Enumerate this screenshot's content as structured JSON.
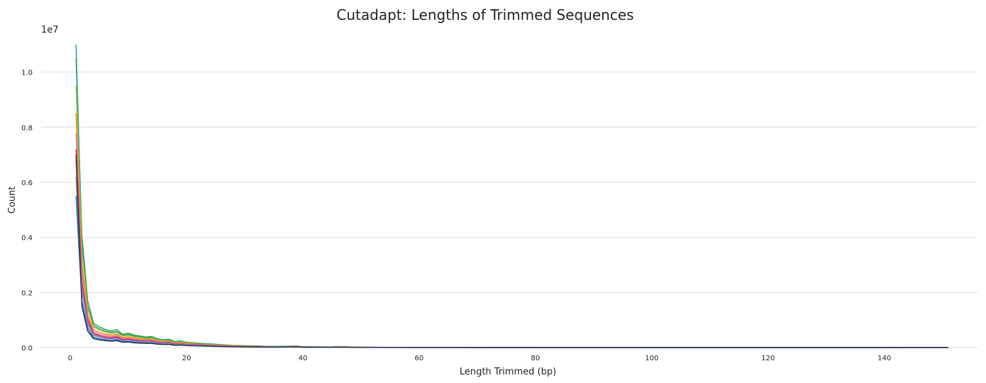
{
  "chart_data": {
    "type": "line",
    "title": "Cutadapt: Lengths of Trimmed Sequences",
    "xlabel": "Length Trimmed (bp)",
    "ylabel": "Count",
    "offset_label": "1e7",
    "xlim": [
      -5,
      156
    ],
    "ylim": [
      0,
      1.12
    ],
    "xticks": [
      0,
      20,
      40,
      60,
      80,
      100,
      120,
      140
    ],
    "yticks": [
      0.0,
      0.2,
      0.4,
      0.6,
      0.8,
      1.0
    ],
    "ytick_labels": [
      "0.0",
      "0.2",
      "0.4",
      "0.6",
      "0.8",
      "1.0"
    ],
    "grid": "horizontal",
    "legend": "none",
    "x": [
      1,
      2,
      3,
      4,
      5,
      6,
      7,
      8,
      9,
      10,
      11,
      12,
      13,
      14,
      15,
      16,
      17,
      18,
      19,
      20,
      22,
      25,
      28,
      30,
      35,
      39,
      40,
      45,
      46,
      50,
      60,
      80,
      100,
      120,
      140,
      151
    ],
    "series": [
      {
        "color": "#2ca02c",
        "values": [
          1.05,
          0.41,
          0.17,
          0.088,
          0.075,
          0.066,
          0.06,
          0.065,
          0.048,
          0.052,
          0.045,
          0.042,
          0.038,
          0.04,
          0.032,
          0.028,
          0.03,
          0.022,
          0.024,
          0.019,
          0.016,
          0.012,
          0.008,
          0.007,
          0.004,
          0.006,
          0.003,
          0.002,
          0.004,
          0.001,
          0.0005,
          0.0003,
          0.0002,
          0.0001,
          0.0001,
          0.0003
        ]
      },
      {
        "color": "#17a29a",
        "values": [
          1.1,
          0.38,
          0.15,
          0.08,
          0.068,
          0.06,
          0.055,
          0.058,
          0.044,
          0.048,
          0.041,
          0.039,
          0.035,
          0.037,
          0.029,
          0.026,
          0.027,
          0.02,
          0.022,
          0.017,
          0.015,
          0.011,
          0.007,
          0.006,
          0.004,
          0.005,
          0.003,
          0.002,
          0.003,
          0.001,
          0.0005,
          0.0003,
          0.0002,
          0.0001,
          0.0001,
          0.0003
        ]
      },
      {
        "color": "#bcbd22",
        "values": [
          0.95,
          0.35,
          0.14,
          0.075,
          0.063,
          0.056,
          0.051,
          0.054,
          0.041,
          0.044,
          0.038,
          0.036,
          0.032,
          0.034,
          0.027,
          0.024,
          0.025,
          0.018,
          0.02,
          0.016,
          0.013,
          0.01,
          0.007,
          0.006,
          0.003,
          0.005,
          0.002,
          0.002,
          0.003,
          0.001,
          0.0004,
          0.0003,
          0.0002,
          0.0001,
          0.0001,
          0.0002
        ]
      },
      {
        "color": "#ff7f0e",
        "values": [
          0.85,
          0.3,
          0.12,
          0.065,
          0.055,
          0.049,
          0.045,
          0.048,
          0.036,
          0.039,
          0.034,
          0.032,
          0.029,
          0.031,
          0.024,
          0.021,
          0.022,
          0.016,
          0.018,
          0.014,
          0.012,
          0.009,
          0.006,
          0.005,
          0.003,
          0.004,
          0.002,
          0.001,
          0.003,
          0.001,
          0.0004,
          0.0002,
          0.0002,
          0.0001,
          0.0001,
          0.0002
        ]
      },
      {
        "color": "#e377c2",
        "values": [
          0.78,
          0.27,
          0.11,
          0.058,
          0.049,
          0.044,
          0.04,
          0.043,
          0.032,
          0.035,
          0.03,
          0.028,
          0.026,
          0.027,
          0.021,
          0.019,
          0.02,
          0.014,
          0.016,
          0.012,
          0.011,
          0.008,
          0.005,
          0.004,
          0.003,
          0.004,
          0.002,
          0.001,
          0.002,
          0.001,
          0.0003,
          0.0002,
          0.0001,
          0.0001,
          0.0001,
          0.0002
        ]
      },
      {
        "color": "#d62728",
        "values": [
          0.72,
          0.24,
          0.1,
          0.052,
          0.044,
          0.039,
          0.036,
          0.039,
          0.029,
          0.031,
          0.027,
          0.025,
          0.023,
          0.024,
          0.019,
          0.017,
          0.018,
          0.013,
          0.014,
          0.011,
          0.01,
          0.007,
          0.005,
          0.004,
          0.002,
          0.003,
          0.002,
          0.001,
          0.002,
          0.001,
          0.0003,
          0.0002,
          0.0001,
          0.0001,
          0.0001,
          0.0002
        ]
      },
      {
        "color": "#9467bd",
        "values": [
          0.68,
          0.22,
          0.09,
          0.047,
          0.04,
          0.035,
          0.032,
          0.035,
          0.026,
          0.028,
          0.024,
          0.023,
          0.021,
          0.022,
          0.017,
          0.015,
          0.016,
          0.011,
          0.013,
          0.01,
          0.009,
          0.006,
          0.004,
          0.003,
          0.002,
          0.003,
          0.001,
          0.001,
          0.002,
          0.0008,
          0.0003,
          0.0002,
          0.0001,
          0.0001,
          0.0001,
          0.0002
        ]
      },
      {
        "color": "#7b9fd8",
        "values": [
          0.62,
          0.2,
          0.08,
          0.043,
          0.036,
          0.032,
          0.029,
          0.032,
          0.024,
          0.026,
          0.022,
          0.021,
          0.019,
          0.02,
          0.016,
          0.014,
          0.014,
          0.01,
          0.012,
          0.009,
          0.008,
          0.006,
          0.004,
          0.003,
          0.002,
          0.003,
          0.001,
          0.001,
          0.002,
          0.0007,
          0.0003,
          0.0002,
          0.0001,
          0.0001,
          0.0001,
          0.0002
        ]
      },
      {
        "color": "#1f77b4",
        "values": [
          0.55,
          0.17,
          0.07,
          0.037,
          0.031,
          0.028,
          0.025,
          0.028,
          0.021,
          0.022,
          0.019,
          0.018,
          0.017,
          0.017,
          0.014,
          0.012,
          0.012,
          0.009,
          0.01,
          0.008,
          0.007,
          0.005,
          0.003,
          0.003,
          0.002,
          0.002,
          0.001,
          0.001,
          0.001,
          0.0006,
          0.0002,
          0.0001,
          0.0001,
          0.0001,
          0.0001,
          0.0002
        ]
      },
      {
        "color": "#2b2d42",
        "values": [
          0.7,
          0.15,
          0.06,
          0.032,
          0.028,
          0.025,
          0.023,
          0.025,
          0.019,
          0.02,
          0.017,
          0.016,
          0.015,
          0.015,
          0.012,
          0.011,
          0.011,
          0.008,
          0.009,
          0.007,
          0.006,
          0.004,
          0.003,
          0.002,
          0.001,
          0.002,
          0.001,
          0.001,
          0.001,
          0.0005,
          0.0002,
          0.0001,
          0.0001,
          0.0001,
          0.0001,
          0.0002
        ]
      }
    ]
  }
}
